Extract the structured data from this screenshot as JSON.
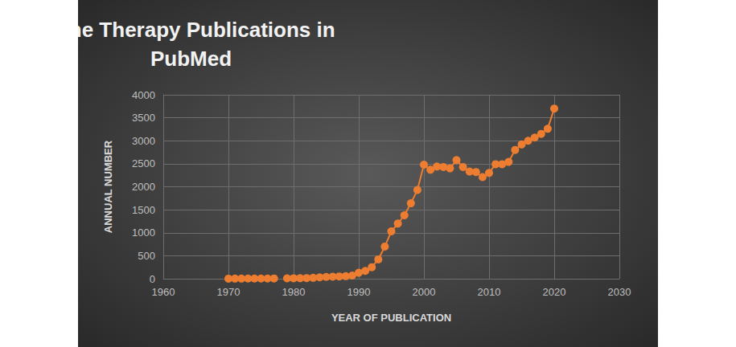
{
  "chart_data": {
    "type": "line",
    "title": "Gene Therapy Publications in PubMed",
    "x_label": "YEAR OF PUBLICATION",
    "y_label": "ANNUAL NUMBER",
    "x": [
      1970,
      1971,
      1972,
      1973,
      1974,
      1975,
      1976,
      1977,
      1978,
      1979,
      1980,
      1981,
      1982,
      1983,
      1984,
      1985,
      1986,
      1987,
      1988,
      1989,
      1990,
      1991,
      1992,
      1993,
      1994,
      1995,
      1996,
      1997,
      1998,
      1999,
      2000,
      2001,
      2002,
      2003,
      2004,
      2005,
      2006,
      2007,
      2008,
      2009,
      2010,
      2011,
      2012,
      2013,
      2014,
      2015,
      2016,
      2017,
      2018,
      2019,
      2020
    ],
    "values": [
      2,
      3,
      3,
      4,
      4,
      5,
      5,
      6,
      null,
      8,
      10,
      12,
      15,
      20,
      30,
      40,
      45,
      50,
      55,
      70,
      130,
      170,
      250,
      420,
      700,
      1030,
      1200,
      1380,
      1640,
      1930,
      2480,
      2370,
      2440,
      2430,
      2400,
      2580,
      2430,
      2330,
      2320,
      2210,
      2300,
      2490,
      2490,
      2540,
      2800,
      2920,
      3000,
      3070,
      3150,
      3260,
      3700
    ],
    "color": "#ed7d31",
    "marker": "circle",
    "line_style": "solid",
    "xlim": [
      1960,
      2030
    ],
    "xticks": [
      1960,
      1970,
      1980,
      1990,
      2000,
      2010,
      2020,
      2030
    ],
    "ylim": [
      0,
      4000
    ],
    "yticks": [
      0,
      500,
      1000,
      1500,
      2000,
      2500,
      3000,
      3500,
      4000
    ],
    "grid": true
  }
}
